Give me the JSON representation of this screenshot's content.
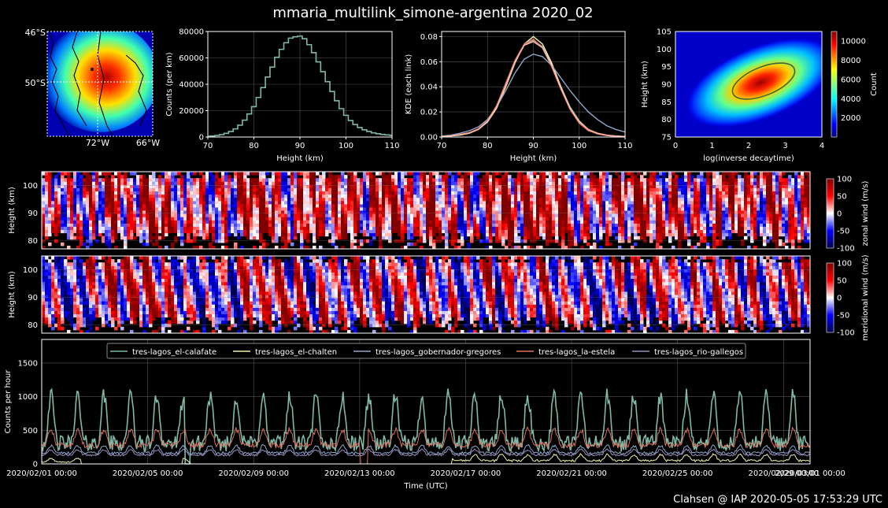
{
  "figure": {
    "title": "mmaria_multilink_simone-argentina 2020_02",
    "footer": "Clahsen @ IAP 2020-05-05 17:53:29 UTC"
  },
  "map": {
    "lat_labels": [
      "46°S",
      "50°S"
    ],
    "lon_labels": [
      "72°W",
      "66°W"
    ]
  },
  "chart_data": [
    {
      "id": "hist",
      "type": "line",
      "xlabel": "Height (km)",
      "ylabel": "Counts (per km)",
      "xlim": [
        70,
        110
      ],
      "ylim": [
        0,
        80000
      ],
      "xticks": [
        70,
        80,
        90,
        100,
        110
      ],
      "yticks": [
        0,
        20000,
        40000,
        60000,
        80000
      ],
      "grid": true,
      "x": [
        70,
        71,
        72,
        73,
        74,
        75,
        76,
        77,
        78,
        79,
        80,
        81,
        82,
        83,
        84,
        85,
        86,
        87,
        88,
        89,
        90,
        91,
        92,
        93,
        94,
        95,
        96,
        97,
        98,
        99,
        100,
        101,
        102,
        103,
        104,
        105,
        106,
        107,
        108,
        109,
        110
      ],
      "values": [
        500,
        800,
        1200,
        1800,
        2800,
        4200,
        6200,
        9000,
        12800,
        17500,
        23000,
        30000,
        37500,
        45500,
        53000,
        60500,
        66500,
        71500,
        75000,
        76000,
        76500,
        74500,
        70000,
        64000,
        57000,
        49500,
        42000,
        34500,
        27500,
        21500,
        16500,
        12500,
        9500,
        7200,
        5500,
        4200,
        3200,
        2500,
        2000,
        1600,
        1300
      ]
    },
    {
      "id": "kde",
      "type": "line",
      "xlabel": "Height (km)",
      "ylabel": "KDE (each link)",
      "xlim": [
        70,
        110
      ],
      "ylim": [
        0,
        0.084
      ],
      "xticks": [
        70,
        80,
        90,
        100,
        110
      ],
      "yticks": [
        0.0,
        0.02,
        0.04,
        0.06,
        0.08
      ],
      "grid": true,
      "x": [
        70,
        72,
        74,
        76,
        78,
        80,
        82,
        84,
        86,
        88,
        90,
        92,
        94,
        96,
        98,
        100,
        102,
        104,
        106,
        108,
        110
      ],
      "series": [
        {
          "color": "#7fb8a4",
          "values": [
            0.0005,
            0.001,
            0.002,
            0.0035,
            0.0065,
            0.013,
            0.025,
            0.042,
            0.06,
            0.073,
            0.077,
            0.072,
            0.058,
            0.04,
            0.024,
            0.013,
            0.006,
            0.003,
            0.0015,
            0.0008,
            0.0005
          ]
        },
        {
          "color": "#f2f2b0",
          "values": [
            0.0004,
            0.0008,
            0.0015,
            0.003,
            0.006,
            0.012,
            0.023,
            0.04,
            0.059,
            0.074,
            0.08,
            0.074,
            0.059,
            0.04,
            0.023,
            0.012,
            0.0055,
            0.0025,
            0.0012,
            0.0006,
            0.0003
          ]
        },
        {
          "color": "#8fa8cc",
          "values": [
            0.0008,
            0.0015,
            0.003,
            0.005,
            0.008,
            0.014,
            0.024,
            0.037,
            0.051,
            0.062,
            0.066,
            0.064,
            0.057,
            0.047,
            0.037,
            0.028,
            0.02,
            0.014,
            0.009,
            0.006,
            0.004
          ]
        },
        {
          "color": "#e07060",
          "values": [
            0.0005,
            0.001,
            0.002,
            0.0035,
            0.0065,
            0.013,
            0.025,
            0.043,
            0.061,
            0.074,
            0.078,
            0.071,
            0.056,
            0.038,
            0.022,
            0.011,
            0.005,
            0.0025,
            0.0012,
            0.0006,
            0.0003
          ]
        },
        {
          "color": "#ffb6a8",
          "values": [
            0.0004,
            0.0009,
            0.0018,
            0.0032,
            0.006,
            0.0125,
            0.024,
            0.041,
            0.06,
            0.073,
            0.076,
            0.071,
            0.057,
            0.039,
            0.023,
            0.012,
            0.006,
            0.003,
            0.0015,
            0.0008,
            0.0004
          ]
        }
      ]
    },
    {
      "id": "heatmap2d",
      "type": "heatmap",
      "xlabel": "log(inverse decaytime)",
      "ylabel": "Height (km)",
      "xlim": [
        0,
        4
      ],
      "ylim": [
        75,
        105
      ],
      "xticks": [
        0,
        1,
        2,
        3,
        4
      ],
      "yticks": [
        75,
        80,
        85,
        90,
        95,
        100,
        105
      ],
      "colorbar_label": "Count",
      "colorbar_ticks": [
        2000,
        4000,
        6000,
        8000,
        10000
      ],
      "colorbar_range": [
        0,
        11000
      ],
      "colormap": "jet",
      "peak": {
        "x": 2.5,
        "y": 90.5,
        "count": 11000
      }
    },
    {
      "id": "zonal",
      "type": "heatmap",
      "ylabel": "Height (km)",
      "yticks": [
        80,
        90,
        100
      ],
      "ylim": [
        77,
        105
      ],
      "colorbar_label": "zonal wind (m/s)",
      "colorbar_ticks": [
        -100,
        -50,
        0,
        50,
        100
      ],
      "colormap": "seismic",
      "bias": 0.35
    },
    {
      "id": "meridional",
      "type": "heatmap",
      "ylabel": "Height (km)",
      "yticks": [
        80,
        90,
        100
      ],
      "ylim": [
        77,
        105
      ],
      "colorbar_label": "meridional wind (m/s)",
      "colorbar_ticks": [
        -100,
        -50,
        0,
        50,
        100
      ],
      "colormap": "seismic",
      "bias": 0.05
    },
    {
      "id": "counts",
      "type": "line",
      "xlabel": "Time (UTC)",
      "ylabel": "Counts per hour",
      "ylim": [
        0,
        1850
      ],
      "yticks": [
        0,
        500,
        1000,
        1500
      ],
      "xlim_days": [
        0,
        29
      ],
      "xticks": [
        "2020/02/01 00:00",
        "2020/02/05 00:00",
        "2020/02/09 00:00",
        "2020/02/13 00:00",
        "2020/02/17 00:00",
        "2020/02/21 00:00",
        "2020/02/25 00:00",
        "2020/02/29 00:00",
        "2020/03/01 00:00"
      ],
      "xtick_days": [
        0,
        4,
        8,
        12,
        16,
        20,
        24,
        28,
        29
      ],
      "legend_position": "top",
      "series": [
        {
          "name": "tres-lagos_el-calafate",
          "color": "#7fb8a4",
          "base": 550,
          "amp": 700
        },
        {
          "name": "tres-lagos_el-chalten",
          "color": "#f2f2b0",
          "base": 80,
          "amp": 90
        },
        {
          "name": "tres-lagos_gobernador-gregores",
          "color": "#8fa8cc",
          "base": 200,
          "amp": 110
        },
        {
          "name": "tres-lagos_la-estela",
          "color": "#e07060",
          "base": 360,
          "amp": 230
        },
        {
          "name": "tres-lagos_rio-gallegos",
          "color": "#9a90c0",
          "base": 160,
          "amp": 80
        }
      ]
    }
  ]
}
